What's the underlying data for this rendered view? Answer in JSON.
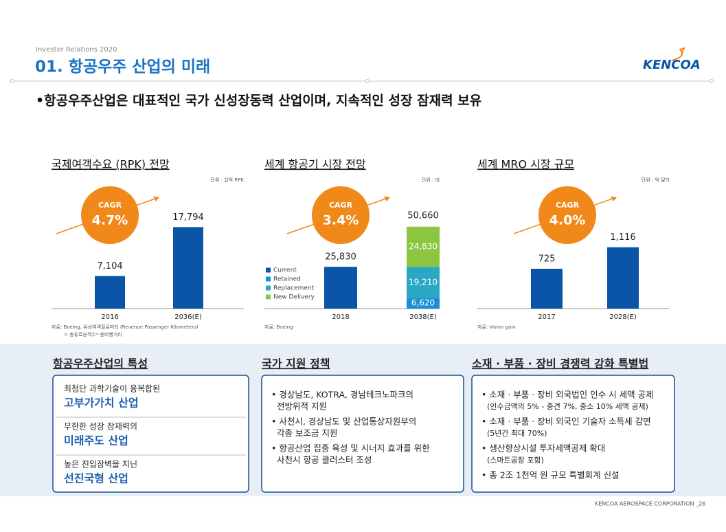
{
  "header": {
    "subtitle": "Investor Relations 2020",
    "title": "01. 항공우주 산업의 미래",
    "logo": "KENCOA"
  },
  "headline": "•항공우주산업은 대표적인 국가 신성장동력 산업이며, 지속적인 성장 잠재력 보유",
  "chart_data": [
    {
      "type": "bar",
      "title": "국제여객수요 (RPK) 전망",
      "unit": "단위 : 십억 RPK",
      "categories": [
        "2016",
        "2036(E)"
      ],
      "values": [
        7104,
        17794
      ],
      "value_labels": [
        "7,104",
        "17,794"
      ],
      "color": "#0a55a8",
      "ylim": [
        0,
        18000
      ],
      "cagr": {
        "label": "CAGR",
        "value": "4.7%"
      },
      "source": [
        "자료: Boeing, 유상여객킬로미터 (Revenue Passenger Kilometers)",
        "= 총유료승객수* 총비행거리"
      ]
    },
    {
      "type": "stacked_bar",
      "title": "세계 항공기 시장 전망",
      "unit": "단위 : 대",
      "categories": [
        "2018",
        "2038(E)"
      ],
      "series": [
        {
          "name": "Current",
          "color": "#0a55a8",
          "values": [
            25830,
            null
          ],
          "value_labels": [
            "25,830",
            null
          ]
        },
        {
          "name": "Retained",
          "color": "#1a8fd6",
          "values": [
            null,
            6620
          ],
          "value_labels": [
            null,
            "6,620"
          ]
        },
        {
          "name": "Replacement",
          "color": "#2aa7c2",
          "values": [
            null,
            19210
          ],
          "value_labels": [
            null,
            "19,210"
          ]
        },
        {
          "name": "New Delivery",
          "color": "#8cc63f",
          "values": [
            null,
            24830
          ],
          "value_labels": [
            null,
            "24,830"
          ]
        }
      ],
      "totals": [
        null,
        50660
      ],
      "total_labels": [
        null,
        "50,660"
      ],
      "legend": "left",
      "ylim": [
        0,
        51000
      ],
      "cagr": {
        "label": "CAGR",
        "value": "3.4%"
      },
      "source": [
        "자료: Boeing"
      ]
    },
    {
      "type": "bar",
      "title": "세계 MRO 시장 규모",
      "unit": "단위 : 억 달러",
      "categories": [
        "2017",
        "2028(E)"
      ],
      "values": [
        725,
        1116
      ],
      "value_labels": [
        "725",
        "1,116"
      ],
      "color": "#0a55a8",
      "ylim": [
        0,
        1500
      ],
      "cagr": {
        "label": "CAGR",
        "value": "4.0%"
      },
      "source": [
        "자료: Vision gain"
      ]
    }
  ],
  "sections": [
    {
      "title": "항공우주산업의 특성",
      "items": [
        {
          "sub": "최첨단 과학기술이 융복합된",
          "main": "고부가가치 산업"
        },
        {
          "sub": "무한한 성장 잠재력의",
          "main": "미래주도 산업"
        },
        {
          "sub": "높은 진입장벽을 지닌",
          "main": "선진국형 산업"
        }
      ]
    },
    {
      "title": "국가 지원 정책",
      "bullets": [
        [
          "• 경상남도, KOTRA, 경남테크노파크의",
          "전방위적 지원"
        ],
        [
          "• 사천시, 경상남도 및 산업통상자원부의",
          "각종 보조금 지원"
        ],
        [
          "• 항공산업 집중 육성 및 시너지 효과를 위한",
          "사천시 항공 클러스터 조성"
        ]
      ]
    },
    {
      "title": "소재 · 부품 · 장비 경쟁력 강화 특별법",
      "bullets": [
        [
          "• 소재 · 부품 · 장비 외국법인 인수 시 세액 공제",
          "(인수금액의 5% - 중견 7%, 중소 10% 세액 공제)"
        ],
        [
          "• 소재 · 부품 · 장비 외국인 기술자 소득세 감면",
          "(5년간 최대 70%)"
        ],
        [
          "• 생산향상시설 투자세액공제 확대",
          "(스마트공장 포함)"
        ],
        [
          "• 총 2조 1천억 원 규모 특별회계 신설"
        ]
      ]
    }
  ],
  "footer": "KENCOA AEROSPACE CORPORATION _26"
}
